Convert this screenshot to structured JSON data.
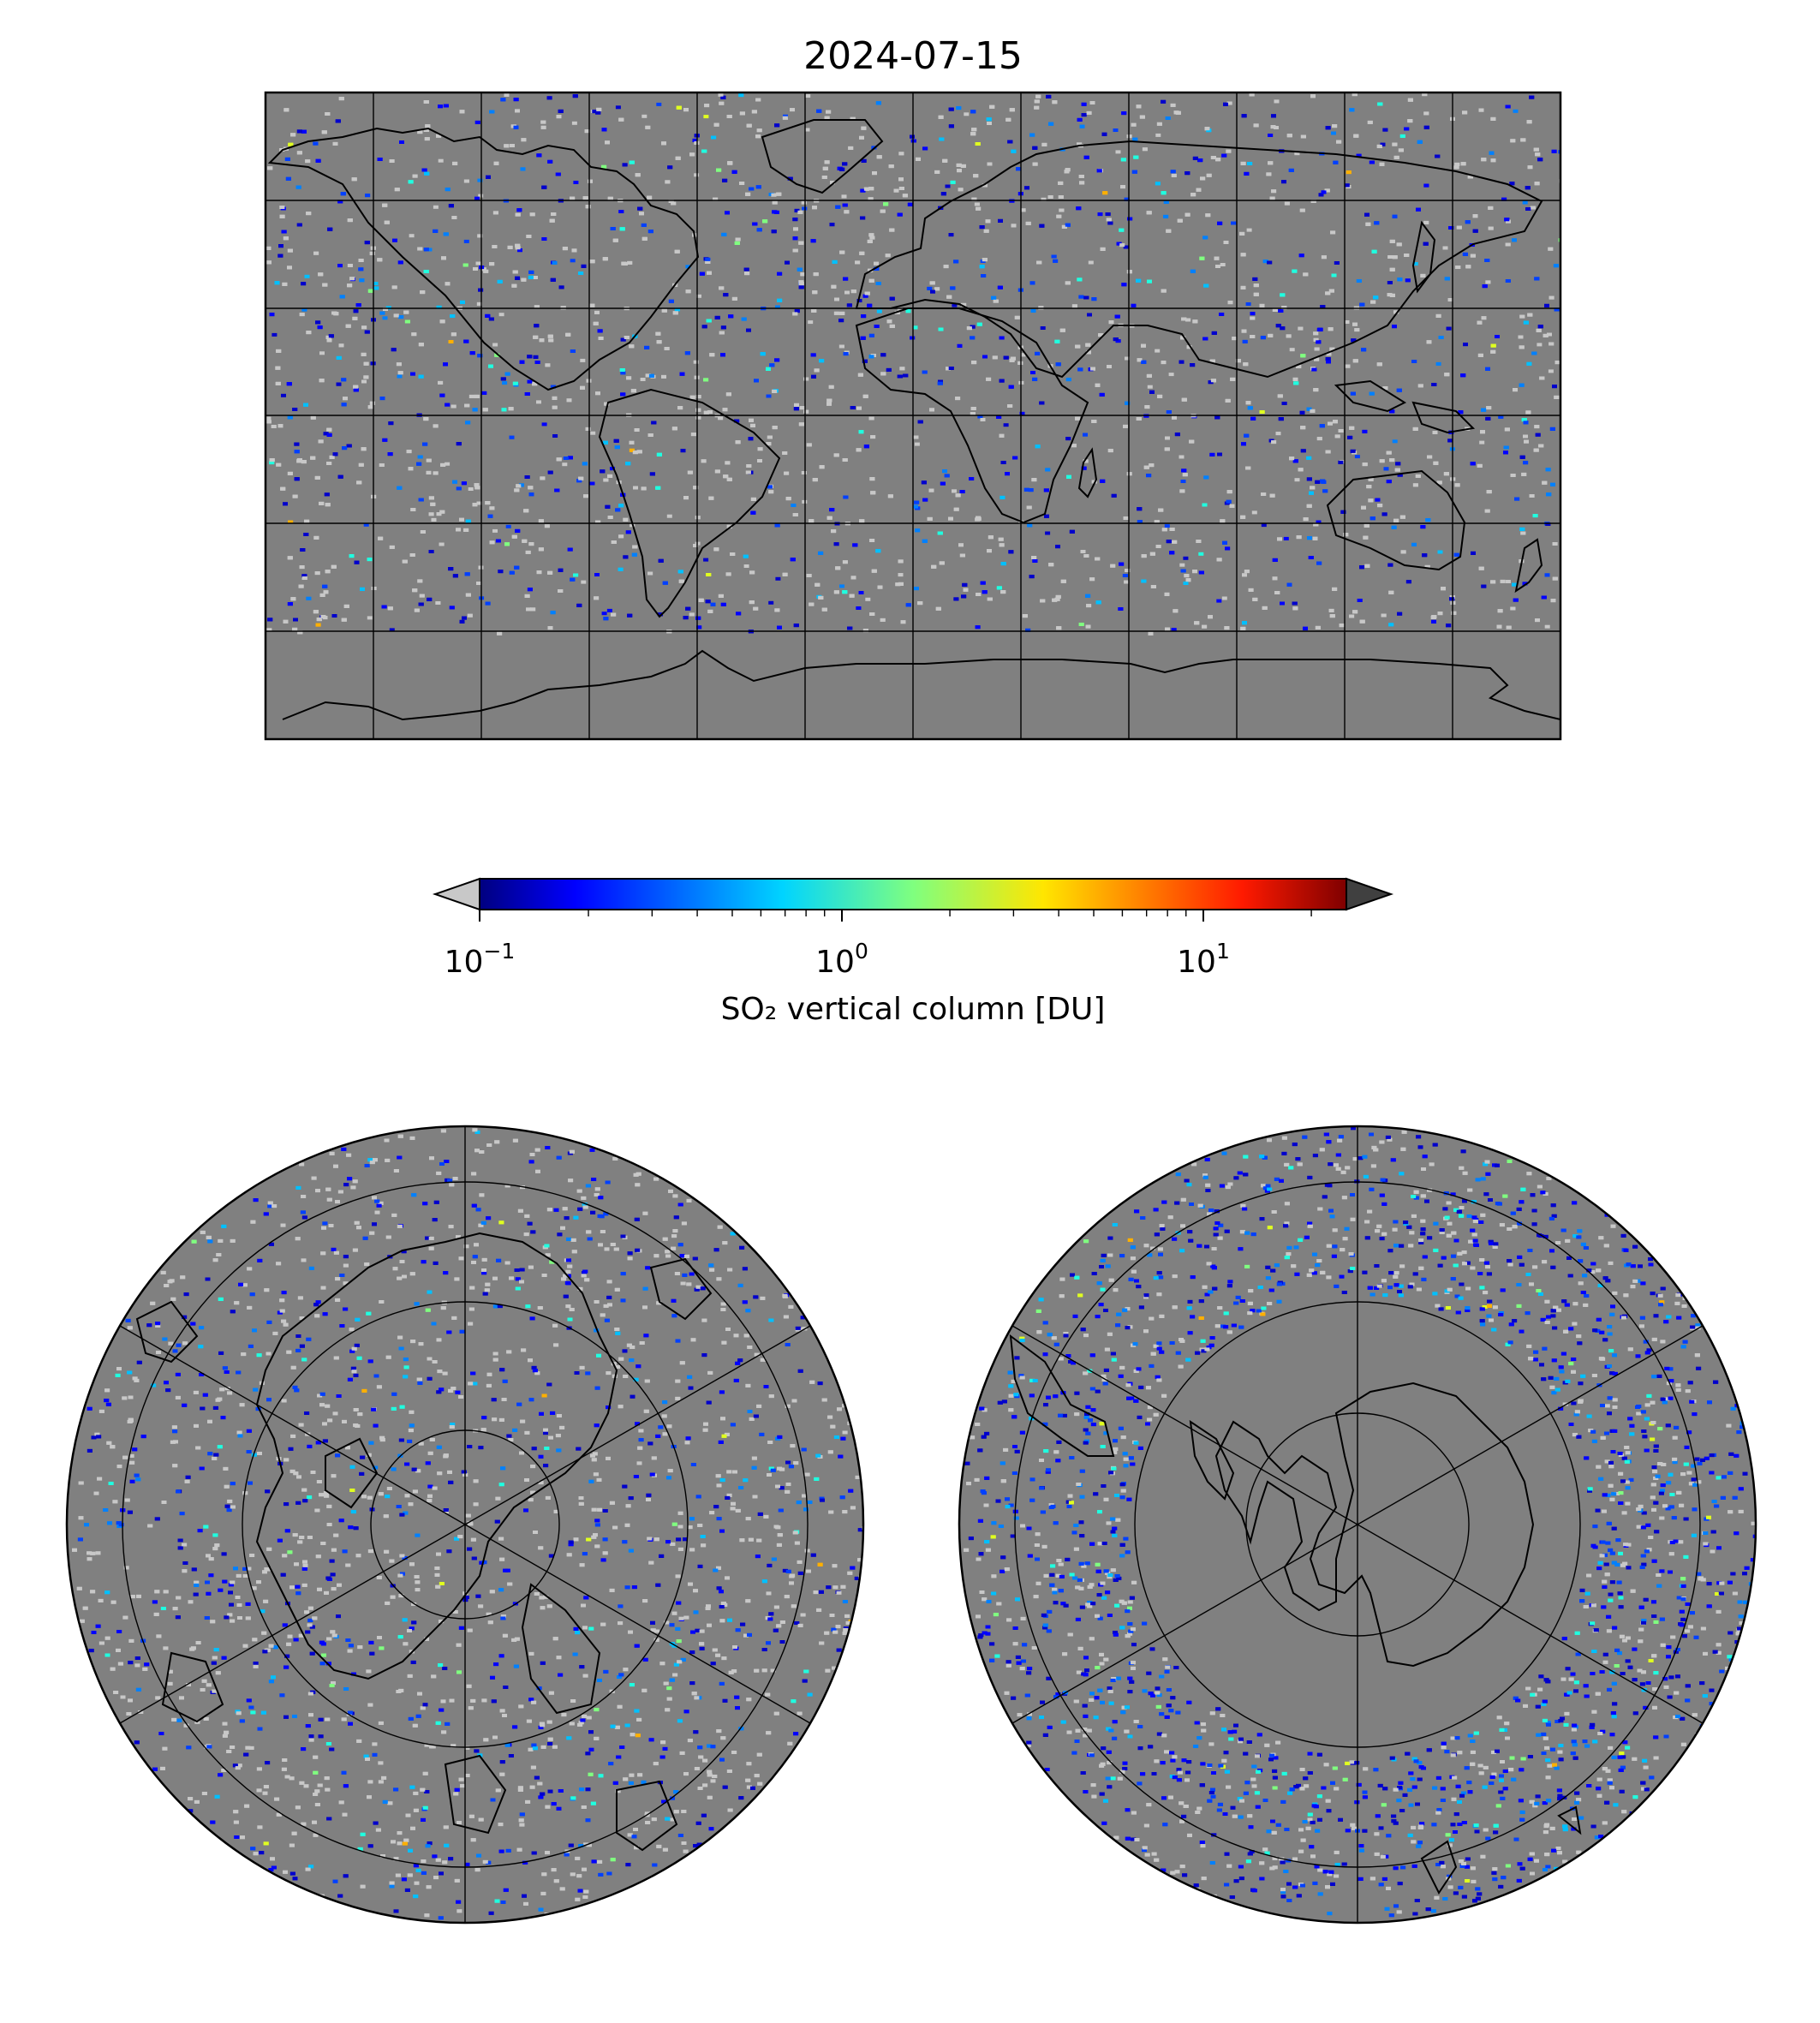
{
  "figure": {
    "title": "2024-07-15"
  },
  "colorbar": {
    "label": "SO₂ vertical column [DU]",
    "scale": "log",
    "range": [
      0.1,
      25
    ],
    "extend": "both",
    "colormap": "jet",
    "under_color": "#c8c8c8",
    "over_color": "#404040",
    "ticks": [
      {
        "value": 0.1,
        "base": "10",
        "exp": "−1"
      },
      {
        "value": 1,
        "base": "10",
        "exp": "0"
      },
      {
        "value": 10,
        "base": "10",
        "exp": "1"
      }
    ]
  },
  "maps": [
    {
      "id": "global",
      "projection": "plate-carree",
      "background": "#808080",
      "gridlines_lon_step_deg": 30,
      "gridlines_lat_step_deg": 30
    },
    {
      "id": "north-polar",
      "projection": "north-polar-stereographic",
      "background": "#808080"
    },
    {
      "id": "south-polar",
      "projection": "south-polar-stereographic",
      "background": "#808080"
    }
  ]
}
